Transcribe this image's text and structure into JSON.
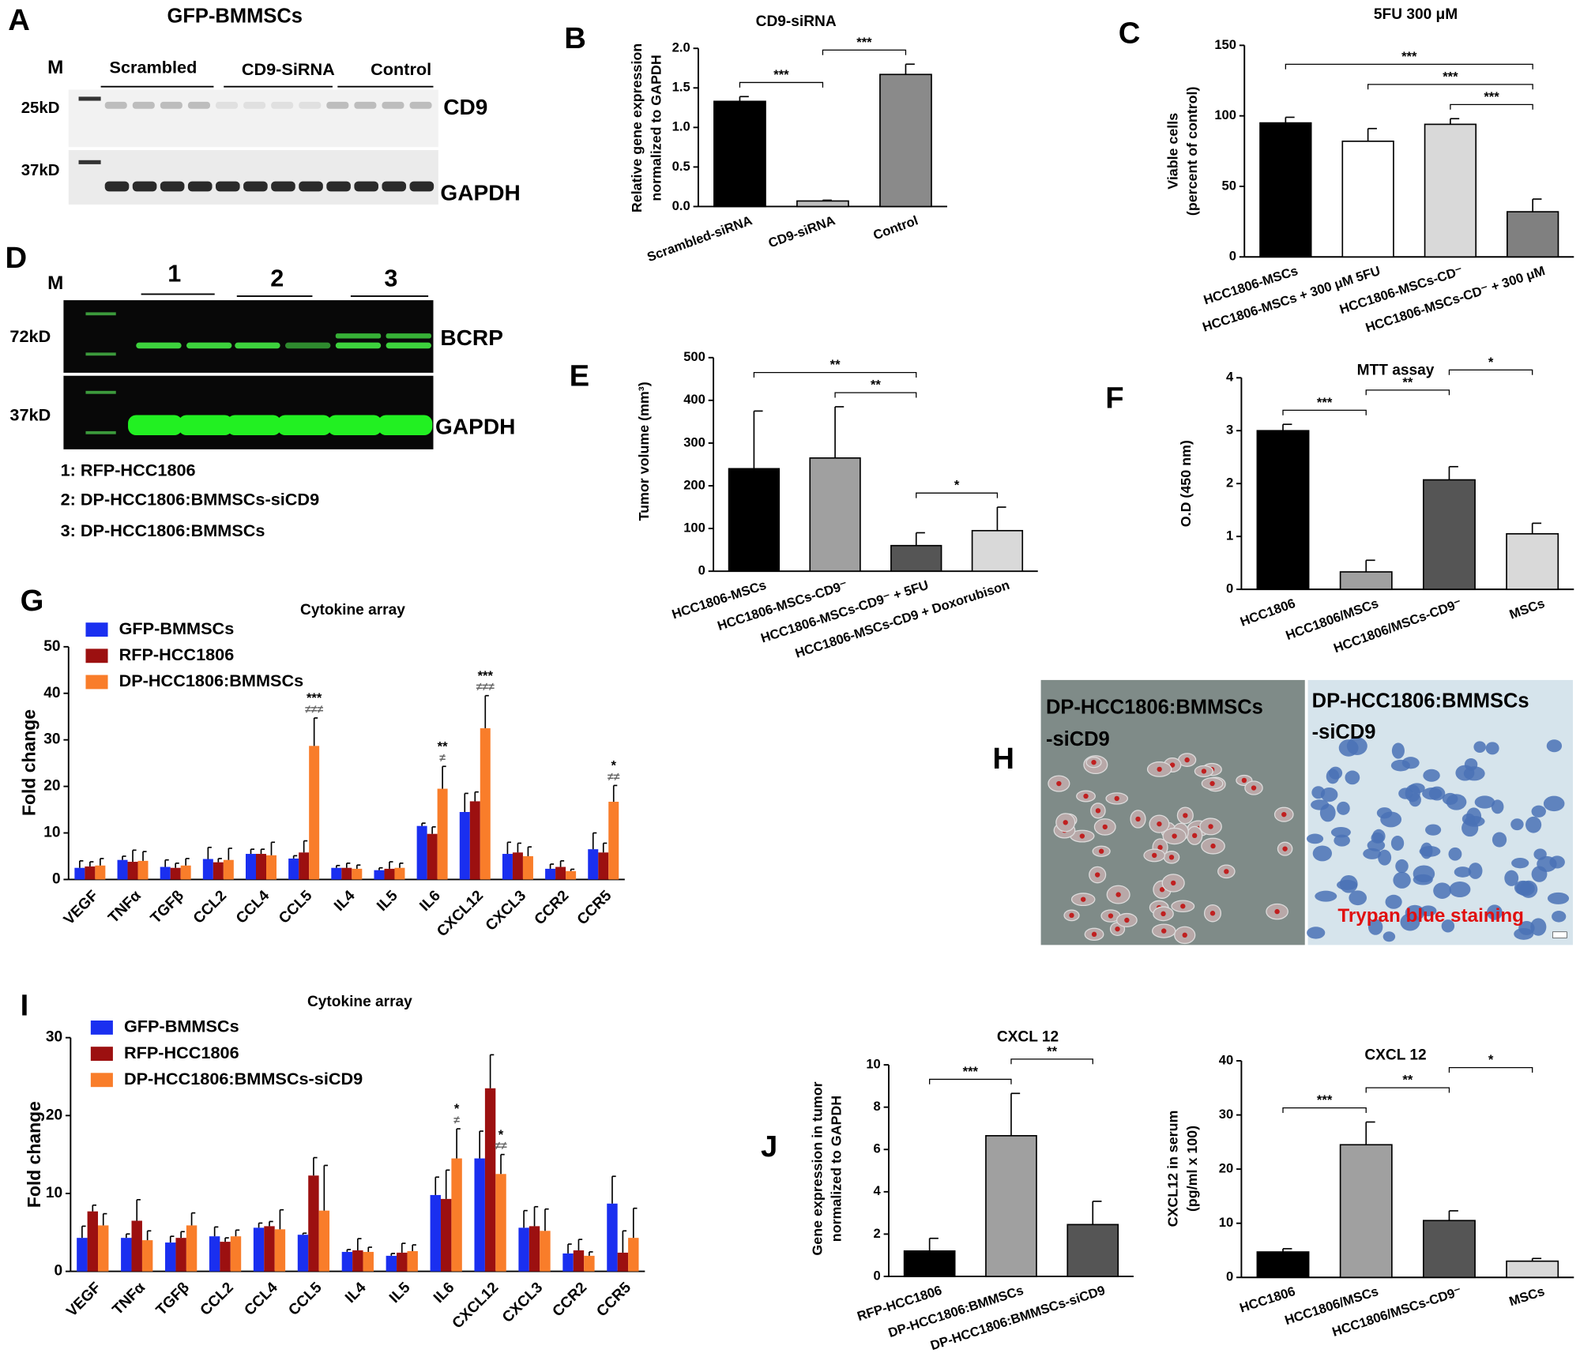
{
  "blot_a": {
    "panel": "A",
    "title": "GFP-BMMSCs",
    "marker": "M",
    "groups": [
      "Scrambled",
      "CD9-SiRNA",
      "Control"
    ],
    "sizes": [
      "25kD",
      "37kD"
    ],
    "bands": [
      "CD9",
      "GAPDH"
    ]
  },
  "blot_d": {
    "panel": "D",
    "marker": "M",
    "lanes": [
      "1",
      "2",
      "3"
    ],
    "sizes": [
      "72kD",
      "37kD"
    ],
    "bands": [
      "BCRP",
      "GAPDH"
    ],
    "key": [
      "1: RFP-HCC1806",
      "2: DP-HCC1806:BMMSCs-siCD9",
      "3: DP-HCC1806:BMMSCs"
    ]
  },
  "micrograph_h": {
    "panel": "H",
    "left_label": [
      "DP-HCC1806:BMMSCs",
      "-siCD9"
    ],
    "right_label": [
      "DP-HCC1806:BMMSCs",
      "-siCD9"
    ],
    "stain": "Trypan blue staining"
  },
  "chart_data": [
    {
      "type": "bar",
      "panel": "B",
      "title": "CD9-siRNA",
      "y_label": [
        "Relative gene expression",
        "normalized to GAPDH"
      ],
      "categories": [
        "Scrambled-siRNA",
        "CD9-siRNA",
        "Control"
      ],
      "values": [
        1.33,
        0.07,
        1.67
      ],
      "errors": [
        0.06,
        0.01,
        0.13
      ],
      "colors": [
        "#000000",
        "#bdbdbd",
        "#8a8a8a"
      ],
      "ylim": [
        0,
        2
      ],
      "yticks": [
        {
          "value": 0,
          "label": "0.0"
        },
        0.5,
        {
          "value": 1,
          "label": "1.0"
        },
        1.5,
        {
          "value": 2,
          "label": "2.0"
        }
      ],
      "brackets": [
        {
          "from": 0,
          "to": 1,
          "label": "***"
        },
        {
          "from": 1,
          "to": 2,
          "label": "***"
        }
      ]
    },
    {
      "type": "bar",
      "panel": "C",
      "title": "5FU 300 μM",
      "y_label": [
        "Viable cells",
        "(percent of control)"
      ],
      "categories": [
        "HCC1806-MSCs",
        "HCC1806-MSCs + 300 μM 5FU",
        "HCC1806-MSCs-CD⁻",
        "HCC1806-MSCs-CD⁻ + 300 μM"
      ],
      "values": [
        95,
        82,
        94,
        32
      ],
      "errors": [
        4,
        9,
        4,
        9
      ],
      "colors": [
        "#000000",
        "#ffffff",
        "#d9d9d9",
        "#808080"
      ],
      "ylim": [
        0,
        150
      ],
      "yticks": [
        0,
        50,
        100,
        150
      ],
      "brackets": [
        {
          "from": 2,
          "to": 3,
          "label": "***"
        },
        {
          "from": 1,
          "to": 3,
          "label": "***"
        },
        {
          "from": 0,
          "to": 3,
          "label": "***"
        }
      ]
    },
    {
      "type": "bar",
      "panel": "E",
      "y_label": [
        "Tumor volume (mm³)"
      ],
      "categories": [
        "HCC1806-MSCs",
        "HCC1806-MSCs-CD9⁻",
        "HCC1806-MSCs-CD9⁻ + 5FU",
        "HCC1806-MSCs-CD9 + Doxorubison"
      ],
      "values": [
        240,
        265,
        60,
        95
      ],
      "errors": [
        135,
        120,
        30,
        55
      ],
      "colors": [
        "#000000",
        "#a0a0a0",
        "#555555",
        "#d9d9d9"
      ],
      "ylim": [
        0,
        500
      ],
      "yticks": [
        0,
        100,
        200,
        300,
        400,
        500
      ],
      "brackets": [
        {
          "from": 2,
          "to": 3,
          "label": "*"
        },
        {
          "from": 1,
          "to": 2,
          "label": "**"
        },
        {
          "from": 0,
          "to": 2,
          "label": "**"
        }
      ]
    },
    {
      "type": "bar",
      "panel": "F",
      "title": "MTT assay",
      "y_label": [
        "O.D (450 nm)"
      ],
      "categories": [
        "HCC1806",
        "HCC1806/MSCs",
        "HCC1806/MSCs-CD9⁻",
        "MSCs"
      ],
      "values": [
        3.0,
        0.33,
        2.07,
        1.05
      ],
      "errors": [
        0.12,
        0.22,
        0.25,
        0.2
      ],
      "colors": [
        "#000000",
        "#a0a0a0",
        "#555555",
        "#d9d9d9"
      ],
      "ylim": [
        0,
        4
      ],
      "yticks": [
        0,
        1,
        2,
        3,
        4
      ],
      "brackets": [
        {
          "from": 0,
          "to": 1,
          "label": "***"
        },
        {
          "from": 1,
          "to": 2,
          "label": "**"
        },
        {
          "from": 2,
          "to": 3,
          "label": "*"
        }
      ]
    },
    {
      "type": "grouped_bar",
      "panel": "G",
      "title": "Cytokine array",
      "y_label": [
        "Fold change"
      ],
      "categories": [
        "VEGF",
        "TNFα",
        "TGFβ",
        "CCL2",
        "CCL4",
        "CCL5",
        "IL4",
        "IL5",
        "IL6",
        "CXCL12",
        "CXCL3",
        "CCR2",
        "CCR5"
      ],
      "series": [
        {
          "name": "GFP-BMMSCs",
          "color": "#1a2ff0",
          "values": [
            2.5,
            4.2,
            2.7,
            4.4,
            5.5,
            4.5,
            2.5,
            2.0,
            11.5,
            14.5,
            5.5,
            2.3,
            6.5
          ],
          "errors": [
            1.5,
            0.8,
            1.5,
            2.5,
            1,
            0.6,
            0.5,
            0.5,
            0.6,
            4,
            2.5,
            1,
            3.5
          ]
        },
        {
          "name": "RFP-HCC1806",
          "color": "#9c1010",
          "values": [
            2.8,
            3.8,
            2.5,
            3.7,
            5.5,
            5.8,
            2.5,
            2.3,
            9.8,
            16.8,
            5.8,
            2.7,
            5.8
          ],
          "errors": [
            1,
            2.5,
            1,
            0.8,
            1,
            2.5,
            1,
            1.5,
            1.5,
            2,
            2,
            1.3,
            2
          ]
        },
        {
          "name": "DP-HCC1806:BMMSCs",
          "color": "#f97d2a",
          "values": [
            3.0,
            4.0,
            3.0,
            4.2,
            5.2,
            28.7,
            2.3,
            2.5,
            19.5,
            32.5,
            5.0,
            1.8,
            16.7
          ],
          "errors": [
            1.5,
            2,
            1.5,
            2.5,
            2.8,
            6,
            0.8,
            1,
            4.8,
            7,
            2,
            0.4,
            3.5
          ]
        }
      ],
      "ylim": [
        0,
        50
      ],
      "yticks": [
        0,
        10,
        20,
        30,
        40,
        50
      ],
      "annotations": [
        {
          "category": 5,
          "series": 2,
          "lines": [
            "***",
            "≠≠≠"
          ]
        },
        {
          "category": 8,
          "series": 2,
          "lines": [
            "**",
            "≠"
          ]
        },
        {
          "category": 9,
          "series": 2,
          "lines": [
            "***",
            "≠≠≠"
          ]
        },
        {
          "category": 12,
          "series": 2,
          "lines": [
            "*",
            "≠≠"
          ]
        }
      ]
    },
    {
      "type": "grouped_bar",
      "panel": "I",
      "title": "Cytokine array",
      "y_label": [
        "Fold change"
      ],
      "categories": [
        "VEGF",
        "TNFα",
        "TGFβ",
        "CCL2",
        "CCL4",
        "CCL5",
        "IL4",
        "IL5",
        "IL6",
        "CXCL12",
        "CXCL3",
        "CCR2",
        "CCR5"
      ],
      "series": [
        {
          "name": "GFP-BMMSCs",
          "color": "#1a2ff0",
          "values": [
            4.3,
            4.3,
            3.7,
            4.5,
            5.6,
            4.7,
            2.5,
            2.0,
            9.8,
            14.5,
            5.6,
            2.3,
            8.7
          ],
          "errors": [
            1.5,
            0.5,
            0.8,
            1.2,
            0.6,
            0.2,
            0.3,
            0.3,
            2.3,
            3.5,
            2.2,
            1.2,
            3.5
          ]
        },
        {
          "name": "RFP-HCC1806",
          "color": "#9c1010",
          "values": [
            7.7,
            6.5,
            4.3,
            3.8,
            5.8,
            12.3,
            2.7,
            2.4,
            9.3,
            23.5,
            5.8,
            2.7,
            2.4
          ],
          "errors": [
            0.8,
            2.7,
            0.8,
            0.5,
            0.6,
            2.3,
            1.5,
            1.2,
            3.7,
            4.3,
            2.5,
            1.4,
            2.8
          ]
        },
        {
          "name": "DP-HCC1806:BMMSCs-siCD9",
          "color": "#f97d2a",
          "values": [
            5.9,
            4.0,
            5.9,
            4.5,
            5.4,
            7.8,
            2.5,
            2.6,
            14.5,
            12.5,
            5.2,
            2.0,
            4.3
          ],
          "errors": [
            1.5,
            1.2,
            1.6,
            0.8,
            2.5,
            5.8,
            0.6,
            0.8,
            3.8,
            2.5,
            2.8,
            0.5,
            3.8
          ]
        }
      ],
      "ylim": [
        0,
        30
      ],
      "yticks": [
        0,
        10,
        20,
        30
      ],
      "annotations": [
        {
          "category": 8,
          "series": 2,
          "lines": [
            "*",
            "≠"
          ]
        },
        {
          "category": 9,
          "series": 2,
          "lines": [
            "*",
            "≠≠"
          ]
        }
      ]
    },
    {
      "type": "bar",
      "panel": "J",
      "title": "CXCL 12",
      "y_label": [
        "Gene expression in tumor",
        "normalized to GAPDH"
      ],
      "categories": [
        "RFP-HCC1806",
        "DP-HCC1806:BMMSCs",
        "DP-HCC1806:BMMSCs-siCD9"
      ],
      "values": [
        1.2,
        6.65,
        2.45
      ],
      "errors": [
        0.6,
        2.0,
        1.1
      ],
      "colors": [
        "#000000",
        "#a0a0a0",
        "#555555"
      ],
      "ylim": [
        0,
        10
      ],
      "yticks": [
        0,
        2,
        4,
        6,
        8,
        10
      ],
      "brackets": [
        {
          "from": 0,
          "to": 1,
          "label": "***"
        },
        {
          "from": 1,
          "to": 2,
          "label": "**"
        }
      ]
    },
    {
      "type": "bar",
      "title": "CXCL 12",
      "y_label": [
        "CXCL12 in serum",
        "(pg/ml x 100)"
      ],
      "categories": [
        "HCC1806",
        "HCC1806/MSCs",
        "HCC1806/MSCs-CD9⁻",
        "MSCs"
      ],
      "values": [
        4.7,
        24.5,
        10.5,
        3.0
      ],
      "errors": [
        0.6,
        4.2,
        1.8,
        0.5
      ],
      "colors": [
        "#000000",
        "#a0a0a0",
        "#555555",
        "#d9d9d9"
      ],
      "ylim": [
        0,
        40
      ],
      "yticks": [
        0,
        10,
        20,
        30,
        40
      ],
      "brackets": [
        {
          "from": 0,
          "to": 1,
          "label": "***"
        },
        {
          "from": 1,
          "to": 2,
          "label": "**"
        },
        {
          "from": 2,
          "to": 3,
          "label": "*"
        }
      ]
    }
  ]
}
